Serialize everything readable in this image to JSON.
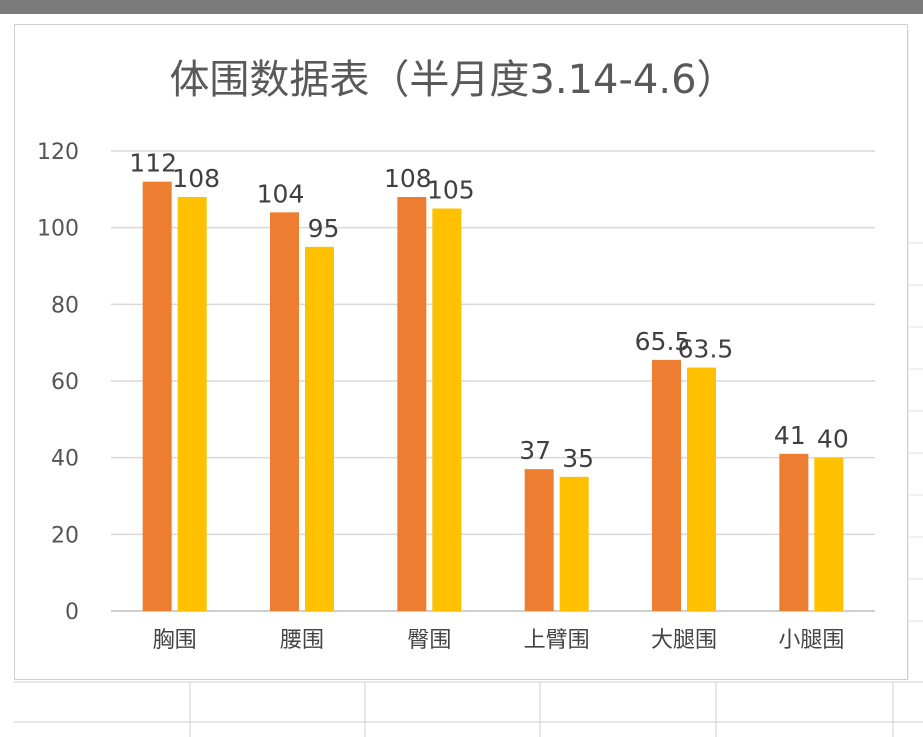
{
  "colors": {
    "series_1": "#ED7D31",
    "series_2": "#FFC000",
    "gridline": "#d9d9d9",
    "axis": "#bfbfbf"
  },
  "chart_data": {
    "type": "bar",
    "title": "体围数据表（半月度3.14-4.6）",
    "categories": [
      "胸围",
      "腰围",
      "臀围",
      "上臂围",
      "大腿围",
      "小腿围"
    ],
    "series": [
      {
        "values": [
          112,
          104,
          108,
          37,
          65.5,
          41
        ]
      },
      {
        "values": [
          108,
          95,
          105,
          35,
          63.5,
          40
        ]
      }
    ],
    "ylim": [
      0,
      120
    ],
    "yticks": [
      0,
      20,
      40,
      60,
      80,
      100,
      120
    ],
    "grid": true,
    "legend": "none",
    "xlabel": "",
    "ylabel": ""
  }
}
